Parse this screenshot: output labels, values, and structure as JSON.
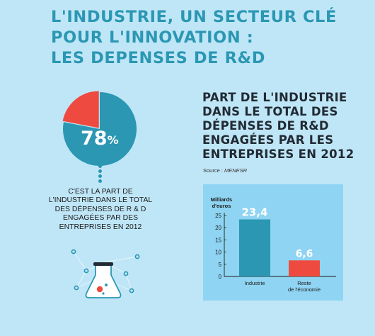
{
  "header": {
    "title_lines": [
      "L'INDUSTRIE, UN SECTEUR CLÉ",
      "POUR L'INNOVATION :",
      "LES DEPENSES DE R&D"
    ]
  },
  "pie": {
    "value_text": "78",
    "percent_sign": "%",
    "description": "C'EST LA PART DE L'INDUSTRIE DANS LE TOTAL DES DÉPENSES DE R & D ENGAGÉES PAR DES ENTREPRISES EN 2012",
    "colors": {
      "main": "#2b97b3",
      "rest": "#ef4a3f"
    }
  },
  "chart_section": {
    "title_lines": [
      "PART DE L'INDUSTRIE",
      "DANS LE TOTAL DES",
      "DÉPENSES DE R&D",
      "ENGAGÉES PAR LES",
      "ENTREPRISES EN 2012"
    ],
    "source_label": "Source : ",
    "source_name": "MENESR"
  },
  "chart_data": [
    {
      "type": "pie",
      "slices": [
        {
          "label": "",
          "value": 78,
          "color": "#2b97b3"
        },
        {
          "label": "",
          "value": 22,
          "color": "#ef4a3f"
        }
      ]
    },
    {
      "type": "bar",
      "categories": [
        "Industrie",
        "Reste de l'économie"
      ],
      "category_lines": [
        [
          "Industrie"
        ],
        [
          "Reste",
          "de l'économie"
        ]
      ],
      "values": [
        23.4,
        6.6
      ],
      "value_labels": [
        "23,4",
        "6,6"
      ],
      "bar_colors": [
        "#2b97b3",
        "#ef4a3f"
      ],
      "ylabel_lines": [
        "Milliards",
        "d'euros"
      ],
      "yticks": [
        0,
        5,
        10,
        15,
        20,
        25
      ],
      "ylim": [
        0,
        25
      ],
      "grid": false
    }
  ],
  "colors": {
    "background": "#bfe6f7",
    "accent": "#2b97b3",
    "red": "#ef4a3f",
    "chart_panel": "#8fd4f2"
  }
}
